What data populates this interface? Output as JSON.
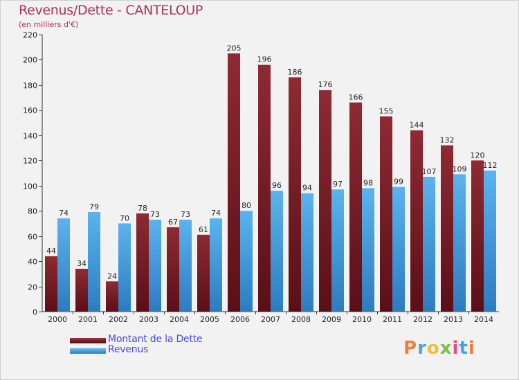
{
  "title": "Revenus/Dette - CANTELOUP",
  "subtitle": "(en milliers d'€)",
  "colors": {
    "dette": "#7b1f28",
    "revenus": "#4aa3e2",
    "title": "#b0305c",
    "legend_text": "#4a4ae0"
  },
  "legend": [
    {
      "label": "Montant de la Dette",
      "color": "#7b1f28"
    },
    {
      "label": "Revenus",
      "color": "#4aa3e2"
    }
  ],
  "logo": "Proxiti",
  "chart_data": {
    "type": "bar",
    "title": "Revenus/Dette - CANTELOUP",
    "subtitle": "(en milliers d'€)",
    "categories": [
      "2000",
      "2001",
      "2002",
      "2003",
      "2004",
      "2005",
      "2006",
      "2007",
      "2008",
      "2009",
      "2010",
      "2011",
      "2012",
      "2013",
      "2014"
    ],
    "series": [
      {
        "name": "Montant de la Dette",
        "values": [
          44,
          34,
          24,
          78,
          67,
          61,
          205,
          196,
          186,
          176,
          166,
          155,
          144,
          132,
          120
        ]
      },
      {
        "name": "Revenus",
        "values": [
          74,
          79,
          70,
          73,
          73,
          74,
          80,
          96,
          94,
          97,
          98,
          99,
          107,
          109,
          112
        ]
      }
    ],
    "y_ticks": [
      0,
      20,
      40,
      60,
      80,
      100,
      120,
      140,
      160,
      180,
      200,
      220
    ],
    "ylim": [
      0,
      220
    ],
    "grid": false,
    "legend_position": "bottom-left"
  }
}
